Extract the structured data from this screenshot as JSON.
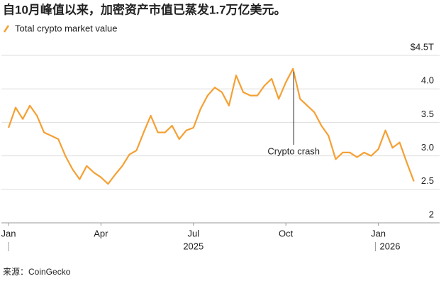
{
  "chart_data": {
    "type": "line",
    "title": "自10月峰值以来，加密资产市值已蒸发1.7万亿美元。",
    "source": "来源：CoinGecko",
    "annotation": "Crypto crash",
    "categories": [
      "Jan",
      null,
      null,
      null,
      null,
      null,
      null,
      null,
      null,
      null,
      null,
      null,
      null,
      "Apr",
      null,
      null,
      null,
      null,
      null,
      null,
      null,
      null,
      null,
      null,
      null,
      null,
      "Jul",
      null,
      null,
      null,
      null,
      null,
      null,
      null,
      null,
      null,
      null,
      null,
      null,
      "Oct",
      null,
      null,
      null,
      null,
      null,
      null,
      null,
      null,
      null,
      null,
      null,
      null,
      "Jan",
      null,
      null,
      null,
      null,
      null
    ],
    "year_labels": [
      "2025",
      "2026"
    ],
    "series": [
      {
        "name": "Total crypto market value",
        "color": "#f5a033",
        "values": [
          3.42,
          3.72,
          3.55,
          3.75,
          3.6,
          3.35,
          3.3,
          3.25,
          3.0,
          2.8,
          2.65,
          2.85,
          2.75,
          2.68,
          2.58,
          2.72,
          2.85,
          3.02,
          3.08,
          3.35,
          3.6,
          3.35,
          3.35,
          3.45,
          3.25,
          3.38,
          3.42,
          3.7,
          3.9,
          4.02,
          3.95,
          3.75,
          4.2,
          3.95,
          3.9,
          3.9,
          4.05,
          4.15,
          3.85,
          4.1,
          4.3,
          3.85,
          3.75,
          3.65,
          3.45,
          3.3,
          2.95,
          3.05,
          3.05,
          2.98,
          3.05,
          3.0,
          3.1,
          3.38,
          3.12,
          3.2,
          2.9,
          2.62
        ]
      }
    ],
    "ylim": [
      2,
      4.5
    ],
    "yticks": [
      2,
      2.5,
      {
        "value": 3,
        "label": "3.0"
      },
      3.5,
      {
        "value": 4,
        "label": "4.0"
      },
      {
        "value": 4.5,
        "label": "$4.5T"
      }
    ],
    "grid": true
  }
}
